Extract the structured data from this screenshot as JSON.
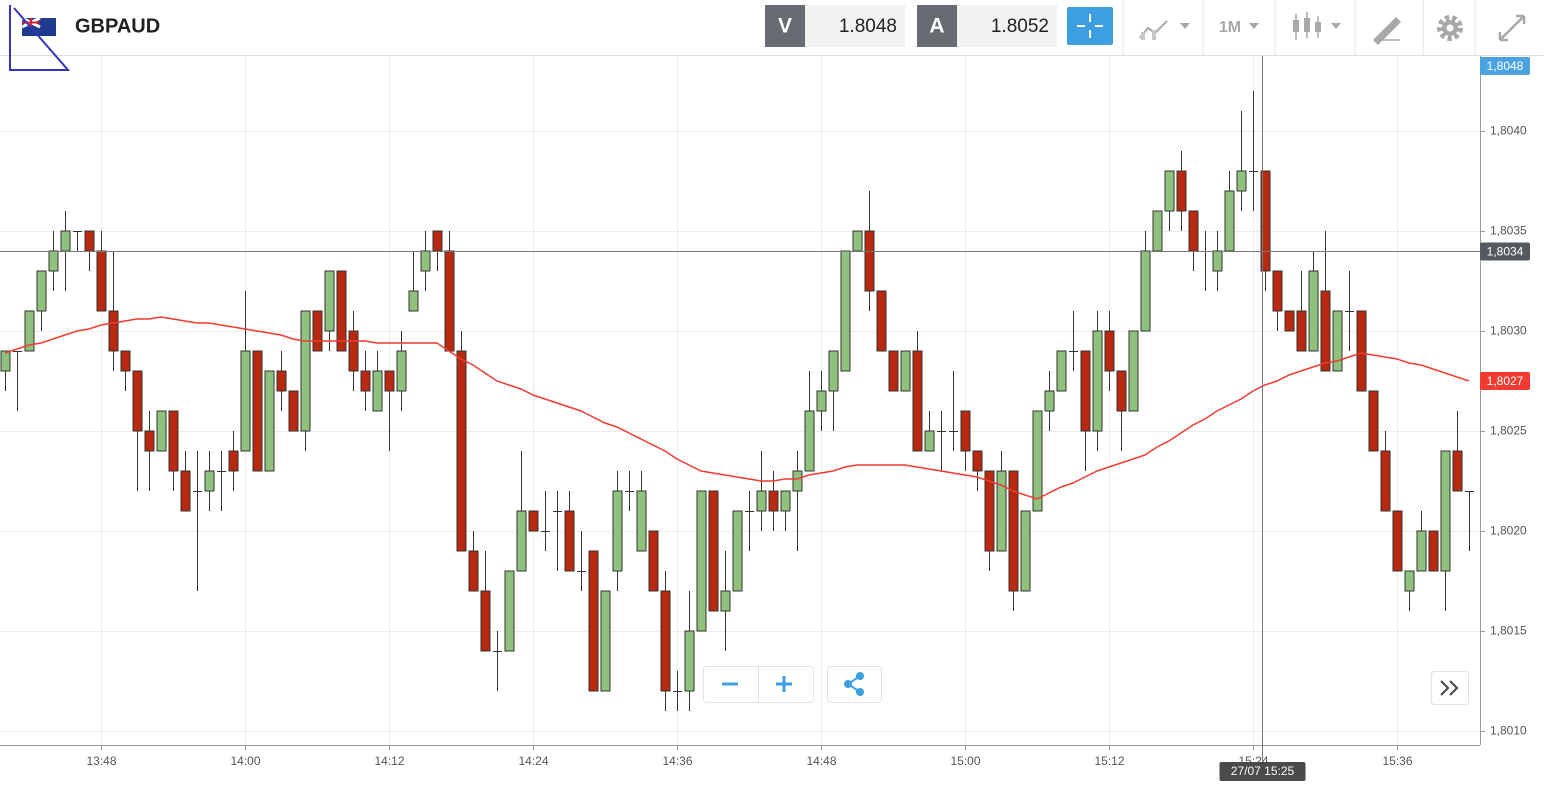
{
  "toolbar": {
    "symbol": "GBPAUD",
    "sell_label": "V",
    "sell_price": "1.8048",
    "buy_label": "A",
    "buy_price": "1.8052",
    "timeframe": "1M"
  },
  "chart_data": {
    "type": "candlestick",
    "x": [
      "13:40",
      "13:41",
      "13:42",
      "13:43",
      "13:44",
      "13:45",
      "13:46",
      "13:47",
      "13:48",
      "13:49",
      "13:50",
      "13:51",
      "13:52",
      "13:53",
      "13:54",
      "13:55",
      "13:56",
      "13:57",
      "13:58",
      "13:59",
      "14:00",
      "14:01",
      "14:02",
      "14:03",
      "14:04",
      "14:05",
      "14:06",
      "14:07",
      "14:08",
      "14:09",
      "14:10",
      "14:11",
      "14:12",
      "14:13",
      "14:14",
      "14:15",
      "14:16",
      "14:17",
      "14:18",
      "14:19",
      "14:20",
      "14:21",
      "14:22",
      "14:23",
      "14:24",
      "14:25",
      "14:26",
      "14:27",
      "14:28",
      "14:29",
      "14:30",
      "14:31",
      "14:32",
      "14:33",
      "14:34",
      "14:35",
      "14:36",
      "14:37",
      "14:38",
      "14:39",
      "14:40",
      "14:41",
      "14:42",
      "14:43",
      "14:44",
      "14:45",
      "14:46",
      "14:47",
      "14:48",
      "14:49",
      "14:50",
      "14:51",
      "14:52",
      "14:53",
      "14:54",
      "14:55",
      "14:56",
      "14:57",
      "14:58",
      "14:59",
      "15:00",
      "15:01",
      "15:02",
      "15:03",
      "15:04",
      "15:05",
      "15:06",
      "15:07",
      "15:08",
      "15:09",
      "15:10",
      "15:11",
      "15:12",
      "15:13",
      "15:14",
      "15:15",
      "15:16",
      "15:17",
      "15:18",
      "15:19",
      "15:20",
      "15:21",
      "15:22",
      "15:23",
      "15:24",
      "15:25",
      "15:26",
      "15:27",
      "15:28",
      "15:29",
      "15:30",
      "15:31",
      "15:32",
      "15:33",
      "15:34",
      "15:35",
      "15:36",
      "15:37",
      "15:38",
      "15:39",
      "15:40",
      "15:41",
      "15:42"
    ],
    "open": [
      1.8028,
      1.8029,
      1.8029,
      1.8031,
      1.8033,
      1.8034,
      1.8035,
      1.8035,
      1.8034,
      1.8031,
      1.8029,
      1.8028,
      1.8025,
      1.8024,
      1.8026,
      1.8023,
      1.8022,
      1.8022,
      1.8023,
      1.8024,
      1.8024,
      1.8029,
      1.8023,
      1.8028,
      1.8027,
      1.8025,
      1.8031,
      1.803,
      1.8033,
      1.803,
      1.8028,
      1.8026,
      1.8028,
      1.8027,
      1.8031,
      1.8033,
      1.8035,
      1.8034,
      1.8029,
      1.8019,
      1.8017,
      1.8014,
      1.8014,
      1.8018,
      1.8021,
      1.802,
      1.8021,
      1.8021,
      1.8018,
      1.8019,
      1.8012,
      1.8018,
      1.8022,
      1.8019,
      1.802,
      1.8017,
      1.8012,
      1.8012,
      1.8015,
      1.8022,
      1.8016,
      1.8017,
      1.8021,
      1.8021,
      1.8022,
      1.8021,
      1.8022,
      1.8023,
      1.8026,
      1.8027,
      1.8028,
      1.8034,
      1.8035,
      1.8032,
      1.8029,
      1.8027,
      1.8029,
      1.8024,
      1.8025,
      1.8025,
      1.8026,
      1.8024,
      1.8023,
      1.8019,
      1.8023,
      1.8017,
      1.8021,
      1.8026,
      1.8027,
      1.8029,
      1.8029,
      1.8025,
      1.803,
      1.8028,
      1.8026,
      1.803,
      1.8034,
      1.8036,
      1.8038,
      1.8036,
      1.8034,
      1.8033,
      1.8034,
      1.8037,
      1.8038,
      1.8038,
      1.8033,
      1.8031,
      1.8031,
      1.8029,
      1.8032,
      1.8028,
      1.8031,
      1.8031,
      1.8027,
      1.8024,
      1.8021,
      1.8017,
      1.8018,
      1.802,
      1.8018,
      1.8024,
      1.8022
    ],
    "high": [
      1.8029,
      1.8029,
      1.8031,
      1.8033,
      1.8035,
      1.8036,
      1.8035,
      1.8035,
      1.8035,
      1.8034,
      1.8029,
      1.8028,
      1.8026,
      1.8026,
      1.8026,
      1.8024,
      1.8024,
      1.8024,
      1.8024,
      1.8025,
      1.8032,
      1.8029,
      1.8028,
      1.8029,
      1.8027,
      1.8031,
      1.8031,
      1.8033,
      1.8033,
      1.8031,
      1.8029,
      1.8029,
      1.8028,
      1.803,
      1.8034,
      1.8035,
      1.8035,
      1.8035,
      1.803,
      1.802,
      1.8019,
      1.8015,
      1.8018,
      1.8024,
      1.8021,
      1.8022,
      1.8022,
      1.8022,
      1.802,
      1.8019,
      1.8017,
      1.8023,
      1.8023,
      1.8023,
      1.802,
      1.8018,
      1.8013,
      1.8017,
      1.8022,
      1.8022,
      1.8019,
      1.8021,
      1.8022,
      1.8024,
      1.8023,
      1.8022,
      1.8024,
      1.8028,
      1.8028,
      1.8029,
      1.8034,
      1.8035,
      1.8037,
      1.8032,
      1.8029,
      1.8029,
      1.803,
      1.8026,
      1.8026,
      1.8028,
      1.8026,
      1.8024,
      1.8023,
      1.8024,
      1.8023,
      1.8021,
      1.8026,
      1.8028,
      1.8029,
      1.8031,
      1.8029,
      1.8031,
      1.8031,
      1.8028,
      1.803,
      1.8035,
      1.8036,
      1.8038,
      1.8039,
      1.8036,
      1.8035,
      1.8035,
      1.8038,
      1.8041,
      1.8042,
      1.8038,
      1.8033,
      1.8031,
      1.8033,
      1.8034,
      1.8035,
      1.8031,
      1.8033,
      1.8031,
      1.8027,
      1.8025,
      1.8021,
      1.8018,
      1.8021,
      1.802,
      1.8024,
      1.8026,
      1.8022
    ],
    "low": [
      1.8027,
      1.8026,
      1.8029,
      1.803,
      1.8032,
      1.8032,
      1.8034,
      1.8033,
      1.8031,
      1.8028,
      1.8027,
      1.8022,
      1.8022,
      1.8024,
      1.8022,
      1.8021,
      1.8017,
      1.8021,
      1.8021,
      1.8022,
      1.8024,
      1.8023,
      1.8023,
      1.8026,
      1.8025,
      1.8024,
      1.8029,
      1.8029,
      1.8029,
      1.8027,
      1.8026,
      1.8026,
      1.8024,
      1.8026,
      1.8031,
      1.8032,
      1.8033,
      1.8029,
      1.8019,
      1.8017,
      1.8014,
      1.8012,
      1.8014,
      1.8018,
      1.802,
      1.8019,
      1.8018,
      1.8018,
      1.8017,
      1.8012,
      1.8012,
      1.8017,
      1.8021,
      1.8019,
      1.8017,
      1.8011,
      1.8011,
      1.8011,
      1.8015,
      1.8016,
      1.8014,
      1.8017,
      1.8019,
      1.802,
      1.802,
      1.802,
      1.8019,
      1.8023,
      1.8025,
      1.8025,
      1.8028,
      1.8034,
      1.8031,
      1.8029,
      1.8027,
      1.8027,
      1.8024,
      1.8024,
      1.8023,
      1.8024,
      1.8023,
      1.8022,
      1.8018,
      1.8019,
      1.8016,
      1.8017,
      1.8021,
      1.8025,
      1.8027,
      1.8028,
      1.8023,
      1.8024,
      1.8027,
      1.8024,
      1.8026,
      1.803,
      1.8034,
      1.8035,
      1.8035,
      1.8033,
      1.8032,
      1.8032,
      1.8034,
      1.8036,
      1.8036,
      1.8032,
      1.803,
      1.803,
      1.8029,
      1.8029,
      1.8028,
      1.8028,
      1.8029,
      1.8027,
      1.8024,
      1.8021,
      1.8018,
      1.8016,
      1.8018,
      1.8018,
      1.8016,
      1.8022,
      1.8019
    ],
    "close": [
      1.8029,
      1.8029,
      1.8031,
      1.8033,
      1.8034,
      1.8035,
      1.8035,
      1.8034,
      1.8031,
      1.8029,
      1.8028,
      1.8025,
      1.8024,
      1.8026,
      1.8023,
      1.8021,
      1.8022,
      1.8023,
      1.8023,
      1.8023,
      1.8029,
      1.8023,
      1.8028,
      1.8027,
      1.8025,
      1.8031,
      1.8029,
      1.8033,
      1.8029,
      1.8028,
      1.8027,
      1.8028,
      1.8027,
      1.8029,
      1.8032,
      1.8034,
      1.8034,
      1.8029,
      1.8019,
      1.8017,
      1.8014,
      1.8014,
      1.8018,
      1.8021,
      1.802,
      1.802,
      1.8021,
      1.8018,
      1.8018,
      1.8012,
      1.8017,
      1.8022,
      1.8022,
      1.8022,
      1.8017,
      1.8012,
      1.8012,
      1.8015,
      1.8022,
      1.8016,
      1.8017,
      1.8021,
      1.8021,
      1.8022,
      1.8021,
      1.8022,
      1.8023,
      1.8026,
      1.8027,
      1.8029,
      1.8034,
      1.8035,
      1.8032,
      1.8029,
      1.8027,
      1.8029,
      1.8024,
      1.8025,
      1.8025,
      1.8025,
      1.8024,
      1.8023,
      1.8019,
      1.8023,
      1.8017,
      1.8021,
      1.8026,
      1.8027,
      1.8029,
      1.8029,
      1.8025,
      1.803,
      1.8028,
      1.8026,
      1.803,
      1.8034,
      1.8036,
      1.8038,
      1.8036,
      1.8034,
      1.8034,
      1.8034,
      1.8037,
      1.8038,
      1.8038,
      1.8033,
      1.8031,
      1.803,
      1.8029,
      1.8033,
      1.8028,
      1.8031,
      1.8031,
      1.8027,
      1.8024,
      1.8021,
      1.8018,
      1.8018,
      1.802,
      1.8018,
      1.8024,
      1.8022,
      1.8022
    ],
    "up_color": "#8fc27c",
    "down_color": "#b8290f",
    "ma": {
      "color": "#f23a30",
      "values": [
        1.80289,
        1.80291,
        1.80293,
        1.80294,
        1.80296,
        1.80298,
        1.803,
        1.80301,
        1.80303,
        1.80304,
        1.80305,
        1.80306,
        1.80306,
        1.80307,
        1.80306,
        1.80305,
        1.80304,
        1.80304,
        1.80303,
        1.80302,
        1.80301,
        1.803,
        1.80299,
        1.80298,
        1.80296,
        1.80295,
        1.80295,
        1.80295,
        1.80295,
        1.80295,
        1.80295,
        1.80294,
        1.80294,
        1.80294,
        1.80294,
        1.80294,
        1.80294,
        1.8029,
        1.80286,
        1.80283,
        1.80279,
        1.80275,
        1.80273,
        1.80271,
        1.80268,
        1.80266,
        1.80264,
        1.80262,
        1.8026,
        1.80257,
        1.80254,
        1.80252,
        1.80249,
        1.80246,
        1.80243,
        1.8024,
        1.80236,
        1.80233,
        1.8023,
        1.80229,
        1.80228,
        1.80227,
        1.80226,
        1.80225,
        1.80225,
        1.80226,
        1.80226,
        1.80228,
        1.80229,
        1.8023,
        1.80232,
        1.80233,
        1.80233,
        1.80233,
        1.80233,
        1.80233,
        1.80232,
        1.80231,
        1.8023,
        1.80229,
        1.80228,
        1.80227,
        1.80225,
        1.80223,
        1.8022,
        1.80218,
        1.80216,
        1.80219,
        1.80222,
        1.80224,
        1.80227,
        1.8023,
        1.80232,
        1.80234,
        1.80236,
        1.80238,
        1.80242,
        1.80245,
        1.80249,
        1.80253,
        1.80256,
        1.8026,
        1.80263,
        1.80266,
        1.8027,
        1.80273,
        1.80275,
        1.80278,
        1.8028,
        1.80282,
        1.80284,
        1.80285,
        1.80287,
        1.80289,
        1.80288,
        1.80287,
        1.80286,
        1.80284,
        1.80283,
        1.80281,
        1.80279,
        1.80277,
        1.80275
      ],
      "last_label": "1,8027"
    },
    "last_price": {
      "value": 1.8048,
      "label": "1,8048",
      "color": "#4aa3df"
    },
    "crosshair": {
      "time_label": "27/07 15:25",
      "price": {
        "value": 1.8034,
        "label": "1,8034"
      }
    },
    "ylim": [
      1.80093,
      1.804375
    ],
    "yticks": [
      {
        "value": 1.801,
        "label": "1,8010"
      },
      {
        "value": 1.8015,
        "label": "1,8015"
      },
      {
        "value": 1.802,
        "label": "1,8020"
      },
      {
        "value": 1.8025,
        "label": "1,8025"
      },
      {
        "value": 1.803,
        "label": "1,8030"
      },
      {
        "value": 1.8035,
        "label": "1,8035"
      },
      {
        "value": 1.804,
        "label": "1,8040"
      }
    ],
    "xticks": [
      "13:48",
      "14:00",
      "14:12",
      "14:24",
      "14:36",
      "14:48",
      "15:00",
      "15:12",
      "15:24",
      "15:36"
    ],
    "grid": true
  }
}
